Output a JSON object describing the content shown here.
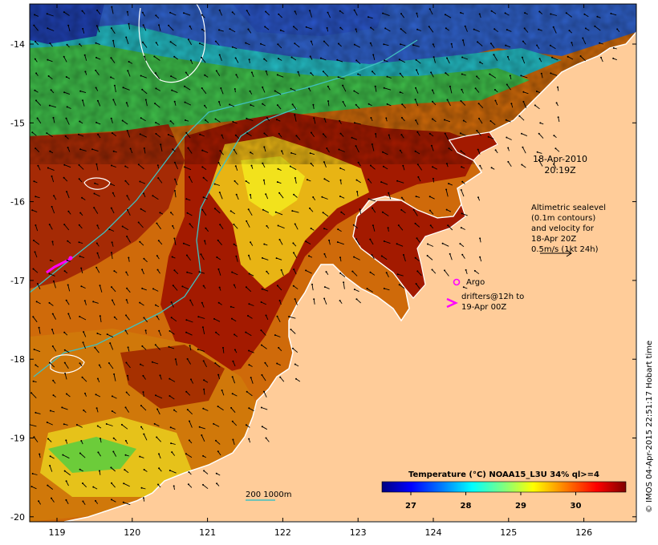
{
  "map": {
    "lon_ticks": [
      "119",
      "120",
      "121",
      "122",
      "123",
      "124",
      "125",
      "126"
    ],
    "lat_ticks": [
      "-14",
      "-15",
      "-16",
      "-17",
      "-18",
      "-19",
      "-20"
    ]
  },
  "annotations": {
    "date": "18-Apr-2010",
    "time": "20:19Z",
    "altimetry_lines": [
      "Altimetric sealevel",
      "(0.1m contours)",
      "and velocity for",
      "18-Apr 20Z",
      "0.5m/s (1kt 24h)"
    ],
    "argo_label": "Argo",
    "drifters_lines": [
      "drifters@12h to",
      "19-Apr 00Z"
    ],
    "bathymetry_label": "200  1000m"
  },
  "colorbar": {
    "title": "Temperature (°C) NOAA15_L3U 34% ql>=4",
    "ticks": [
      "27",
      "28",
      "29",
      "30"
    ],
    "colors": [
      "#00007f",
      "#0000ff",
      "#007fff",
      "#00ffff",
      "#7fff7f",
      "#ffff00",
      "#ff7f00",
      "#ff0000",
      "#7f0000"
    ]
  },
  "side_label": "© IMOS 04-Apr-2015 22:51:17 Hobart time",
  "colors": {
    "land": "#ffcc99",
    "sea_hot": "#a31a00",
    "sea_warm": "#cf6a0a",
    "sea_mid": "#e8a40f",
    "sea_yellow": "#f0e020",
    "sea_green": "#40c040",
    "sea_cyan": "#20b0c0",
    "sea_blue": "#2040c0",
    "contour": "#40c0c0",
    "argo": "#ff00ff"
  }
}
